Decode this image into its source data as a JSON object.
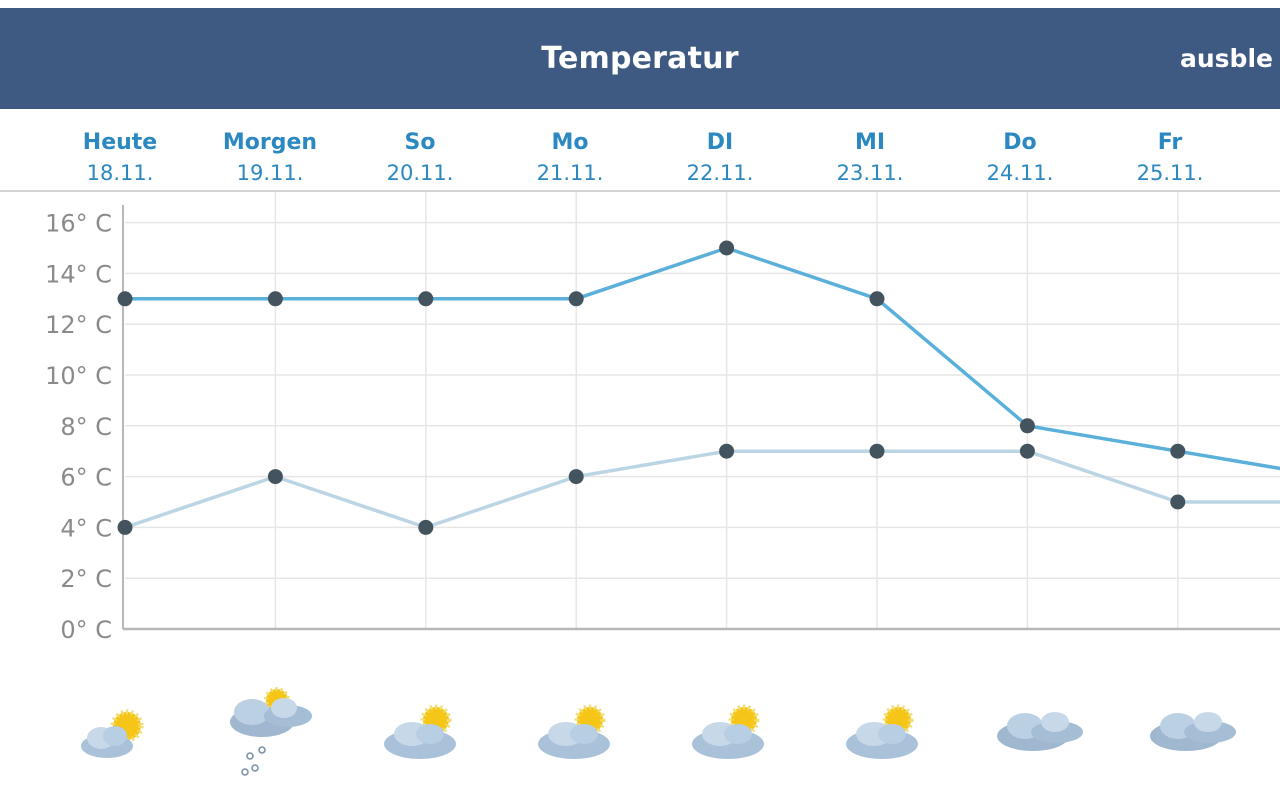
{
  "header": {
    "title": "Temperatur",
    "toggle_label": "ausble"
  },
  "days": [
    {
      "name": "Heute",
      "date": "18.11."
    },
    {
      "name": "Morgen",
      "date": "19.11."
    },
    {
      "name": "So",
      "date": "20.11."
    },
    {
      "name": "Mo",
      "date": "21.11."
    },
    {
      "name": "DI",
      "date": "22.11."
    },
    {
      "name": "MI",
      "date": "23.11."
    },
    {
      "name": "Do",
      "date": "24.11."
    },
    {
      "name": "Fr",
      "date": "25.11."
    }
  ],
  "colors": {
    "header_bg": "#3e5a82",
    "day_label": "#2b88c1",
    "max_line": "#5ab0da",
    "min_line": "#bcd5e5",
    "point": "#44545e",
    "grid": "#e6e6e6",
    "axis_text": "#8a8a8a"
  },
  "icons": [
    {
      "name": "sun-cloud-icon"
    },
    {
      "name": "cloud-sleet-icon"
    },
    {
      "name": "sun-cloud-icon"
    },
    {
      "name": "sun-cloud-icon"
    },
    {
      "name": "sun-cloud-icon"
    },
    {
      "name": "sun-cloud-icon"
    },
    {
      "name": "cloud-icon"
    },
    {
      "name": "cloud-icon"
    }
  ],
  "chart_data": {
    "type": "line",
    "categories": [
      "18.11.",
      "19.11.",
      "20.11.",
      "21.11.",
      "22.11.",
      "23.11.",
      "24.11.",
      "25.11."
    ],
    "series": [
      {
        "values": [
          13,
          13,
          13,
          13,
          15,
          13,
          8,
          7
        ]
      },
      {
        "values": [
          4,
          6,
          4,
          6,
          7,
          7,
          7,
          5
        ]
      }
    ],
    "ylim": [
      0,
      16
    ],
    "yticks": [
      0,
      2,
      4,
      6,
      8,
      10,
      12,
      14,
      16
    ],
    "ytick_labels": [
      "0° C",
      "2° C",
      "4° C",
      "6° C",
      "8° C",
      "10° C",
      "12° C",
      "14° C",
      "16° C"
    ],
    "grid": true
  }
}
